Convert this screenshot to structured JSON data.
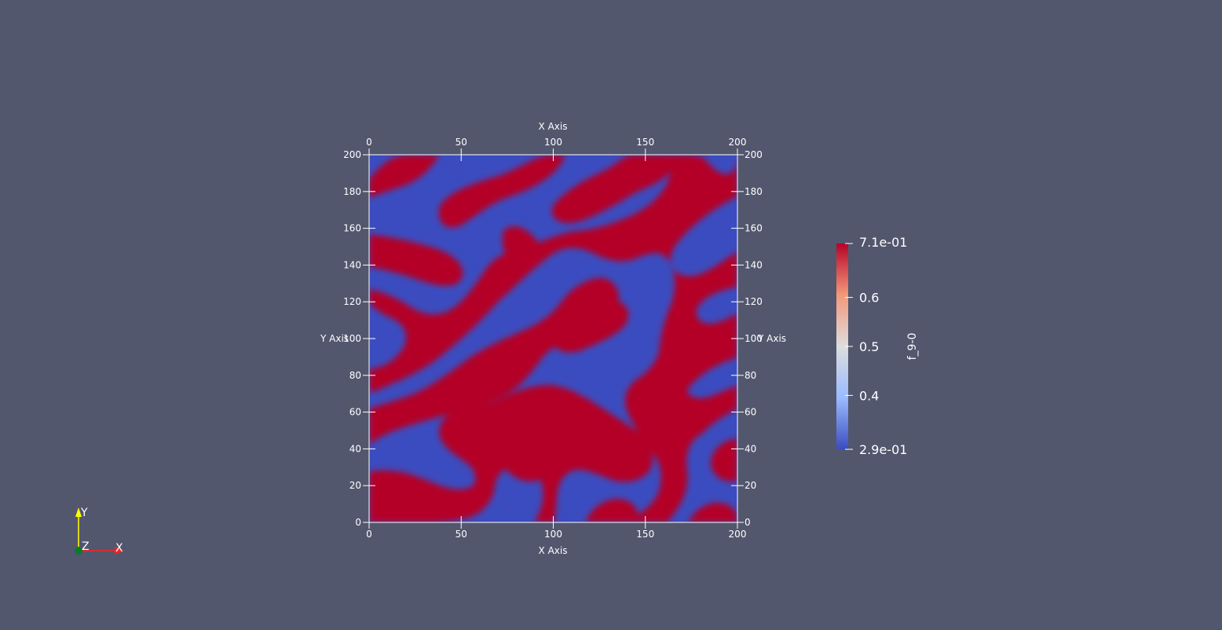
{
  "view": {
    "background": "#52576e",
    "field_colors": {
      "high": "#b40426",
      "low": "#3b4cc0"
    }
  },
  "axes": {
    "x_title_top": "X Axis",
    "x_title_bottom": "X Axis",
    "y_title_left": "Y Axis",
    "y_title_right": "Y Axis",
    "x_ticks": [
      0,
      50,
      100,
      150,
      200
    ],
    "y_ticks": [
      0,
      20,
      40,
      60,
      80,
      100,
      120,
      140,
      160,
      180,
      200
    ],
    "xlim": [
      0,
      200
    ],
    "ylim": [
      0,
      200
    ]
  },
  "colorbar": {
    "title": "f_9-0",
    "max_label": "7.1e-01",
    "min_label": "2.9e-01",
    "min": 0.29,
    "max": 0.71,
    "ticks": [
      {
        "value": 0.6,
        "label": "0.6"
      },
      {
        "value": 0.5,
        "label": "0.5"
      },
      {
        "value": 0.4,
        "label": "0.4"
      }
    ],
    "colors": [
      "#b40426",
      "#f4987a",
      "#dddddd",
      "#9abbff",
      "#3b4cc0"
    ]
  },
  "orientation_axes": {
    "x_label": "X",
    "y_label": "Y",
    "z_label": "Z",
    "x_color": "#ff2020",
    "y_color": "#ffff00",
    "z_color": "#0a7a2e"
  }
}
